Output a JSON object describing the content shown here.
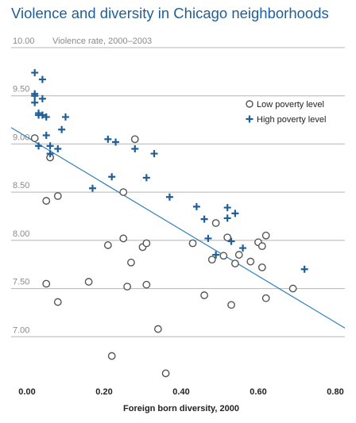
{
  "title": "Violence and diversity in Chicago neighborhoods",
  "chart_data": {
    "type": "scatter",
    "title": "Violence and diversity in Chicago neighborhoods",
    "xlabel": "Foreign born diversity, 2000",
    "ylabel": "Violence rate, 2000–2003",
    "xlim": [
      0.0,
      0.8
    ],
    "ylim": [
      6.5,
      10.0
    ],
    "x_ticks": [
      "0.00",
      "0.20",
      "0.40",
      "0.60",
      "0.80"
    ],
    "y_ticks": [
      "10.00",
      "9.50",
      "9.00",
      "8.50",
      "8.00",
      "7.50",
      "7.00"
    ],
    "grid": "horizontal",
    "legend_position": "top-right",
    "colors": {
      "title": "#1f5f99",
      "high": "#1f5f99",
      "low": "#555555",
      "trend": "#2f7fba",
      "grid": "#b5b5b5"
    },
    "series": [
      {
        "name": "Low poverty level",
        "marker": "circle",
        "points": [
          [
            0.02,
            9.06
          ],
          [
            0.06,
            8.86
          ],
          [
            0.05,
            8.41
          ],
          [
            0.08,
            8.46
          ],
          [
            0.05,
            7.55
          ],
          [
            0.08,
            7.36
          ],
          [
            0.16,
            7.57
          ],
          [
            0.21,
            7.95
          ],
          [
            0.22,
            6.8
          ],
          [
            0.25,
            8.5
          ],
          [
            0.25,
            8.02
          ],
          [
            0.26,
            7.52
          ],
          [
            0.27,
            7.77
          ],
          [
            0.28,
            9.05
          ],
          [
            0.3,
            7.93
          ],
          [
            0.31,
            7.97
          ],
          [
            0.31,
            7.54
          ],
          [
            0.34,
            7.08
          ],
          [
            0.36,
            6.62
          ],
          [
            0.43,
            7.97
          ],
          [
            0.46,
            7.43
          ],
          [
            0.48,
            7.8
          ],
          [
            0.49,
            8.18
          ],
          [
            0.51,
            7.84
          ],
          [
            0.52,
            8.03
          ],
          [
            0.53,
            7.33
          ],
          [
            0.54,
            7.76
          ],
          [
            0.55,
            7.85
          ],
          [
            0.58,
            7.78
          ],
          [
            0.6,
            7.98
          ],
          [
            0.61,
            7.72
          ],
          [
            0.61,
            7.94
          ],
          [
            0.62,
            8.05
          ],
          [
            0.62,
            7.4
          ],
          [
            0.69,
            7.5
          ]
        ]
      },
      {
        "name": "High poverty level",
        "marker": "plus",
        "points": [
          [
            0.02,
            9.74
          ],
          [
            0.04,
            9.67
          ],
          [
            0.02,
            9.52
          ],
          [
            0.02,
            9.5
          ],
          [
            0.04,
            9.47
          ],
          [
            0.02,
            9.43
          ],
          [
            0.03,
            9.32
          ],
          [
            0.04,
            9.3
          ],
          [
            0.03,
            9.3
          ],
          [
            0.05,
            9.28
          ],
          [
            0.1,
            9.28
          ],
          [
            0.09,
            9.15
          ],
          [
            0.05,
            9.09
          ],
          [
            0.06,
            8.98
          ],
          [
            0.03,
            8.98
          ],
          [
            0.08,
            8.95
          ],
          [
            0.06,
            8.9
          ],
          [
            0.17,
            8.54
          ],
          [
            0.21,
            9.05
          ],
          [
            0.23,
            9.02
          ],
          [
            0.28,
            8.95
          ],
          [
            0.31,
            8.65
          ],
          [
            0.33,
            8.9
          ],
          [
            0.37,
            8.45
          ],
          [
            0.22,
            8.66
          ],
          [
            0.44,
            8.35
          ],
          [
            0.46,
            8.22
          ],
          [
            0.47,
            8.02
          ],
          [
            0.52,
            8.34
          ],
          [
            0.52,
            8.23
          ],
          [
            0.53,
            7.99
          ],
          [
            0.54,
            8.28
          ],
          [
            0.49,
            7.85
          ],
          [
            0.56,
            7.92
          ],
          [
            0.72,
            7.7
          ]
        ]
      }
    ],
    "trendline": {
      "from": [
        0.0,
        9.12
      ],
      "to": [
        0.8,
        7.12
      ]
    }
  }
}
